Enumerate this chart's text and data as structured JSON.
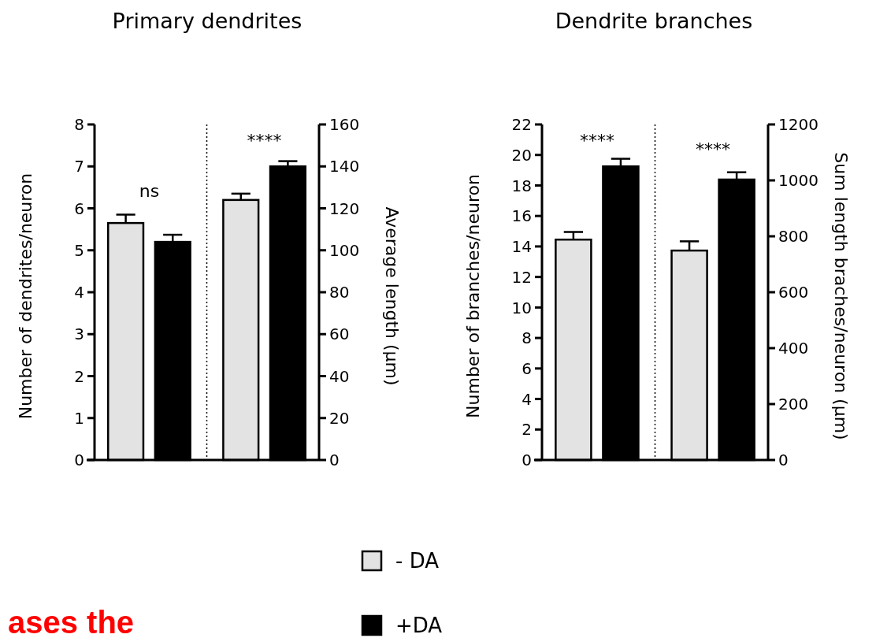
{
  "chart_data": [
    {
      "type": "bar",
      "title": "Primary dendrites",
      "ylabel": "Number of dendrites/neuron",
      "y2label": "Average length (µm)",
      "categories": [
        null,
        null
      ],
      "series": [
        {
          "name": "- DA",
          "color": "#e3e3e3",
          "axis": "y",
          "values": [
            5.65,
            null
          ],
          "errors": [
            0.2,
            null
          ]
        },
        {
          "name": "+DA",
          "color": "#000000",
          "axis": "y",
          "values": [
            5.2,
            null
          ],
          "errors": [
            0.17,
            null
          ]
        },
        {
          "color": "#e3e3e3",
          "axis": "y2",
          "values": [
            null,
            124
          ],
          "errors": [
            null,
            3
          ]
        },
        {
          "color": "#000000",
          "axis": "y2",
          "values": [
            null,
            140
          ],
          "errors": [
            null,
            2.5
          ]
        }
      ],
      "ylim": [
        0,
        8
      ],
      "yticks": [
        0,
        1,
        2,
        3,
        4,
        5,
        6,
        7,
        8
      ],
      "y2lim": [
        0,
        160
      ],
      "y2ticks": [
        0,
        20,
        40,
        60,
        80,
        100,
        120,
        140,
        160
      ],
      "legend": "bottom",
      "grid": false,
      "annotations": [
        "ns",
        "****",
        "ases the"
      ]
    },
    {
      "type": "bar",
      "title": "Dendrite branches",
      "ylabel": "Number of branches/neuron",
      "y2label": "Sum  length braches/neuron (µm)",
      "categories": [
        null,
        null
      ],
      "series": [
        {
          "color": "#e3e3e3",
          "axis": "y",
          "values": [
            14.45,
            null
          ],
          "errors": [
            0.5,
            null
          ]
        },
        {
          "color": "#000000",
          "axis": "y",
          "values": [
            19.25,
            null
          ],
          "errors": [
            0.5,
            null
          ]
        },
        {
          "color": "#e3e3e3",
          "axis": "y2",
          "values": [
            null,
            749
          ],
          "errors": [
            null,
            33
          ]
        },
        {
          "color": "#000000",
          "axis": "y2",
          "values": [
            null,
            1003
          ],
          "errors": [
            null,
            26
          ]
        }
      ],
      "ylim": [
        0,
        22
      ],
      "yticks": [
        0,
        2,
        4,
        6,
        8,
        10,
        12,
        14,
        16,
        18,
        20,
        22
      ],
      "y2lim": [
        0,
        1200
      ],
      "y2ticks": [
        0,
        200,
        400,
        600,
        800,
        1000,
        1200
      ],
      "grid": false,
      "annotations": [
        "****",
        "****"
      ]
    }
  ]
}
